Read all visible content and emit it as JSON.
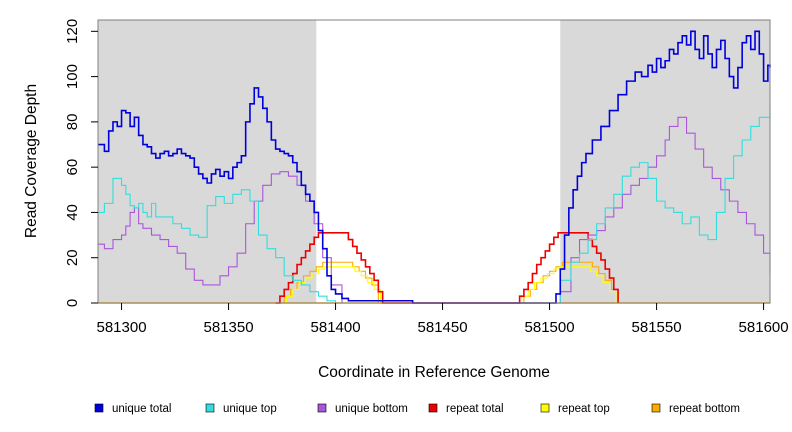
{
  "chart_data": {
    "type": "line",
    "step": true,
    "xlabel": "Coordinate in Reference Genome",
    "ylabel": "Read Coverage Depth",
    "xlim": [
      581289,
      581603
    ],
    "ylim": [
      0,
      125
    ],
    "xticks": [
      581300,
      581350,
      581400,
      581450,
      581500,
      581550,
      581600
    ],
    "yticks": [
      0,
      20,
      40,
      60,
      80,
      100,
      120
    ],
    "shaded_regions": [
      [
        581289,
        581391
      ],
      [
        581505,
        581603
      ]
    ],
    "shade_color": "#d9d9d9",
    "legend_position": "bottom",
    "series": [
      {
        "name": "unique total",
        "color": "#0000dd",
        "x": [
          581289,
          581292,
          581294,
          581296,
          581298,
          581300,
          581302,
          581304,
          581306,
          581308,
          581310,
          581312,
          581314,
          581316,
          581318,
          581320,
          581322,
          581324,
          581326,
          581328,
          581330,
          581332,
          581334,
          581336,
          581338,
          581340,
          581342,
          581344,
          581346,
          581348,
          581350,
          581352,
          581354,
          581356,
          581358,
          581360,
          581362,
          581364,
          581366,
          581368,
          581370,
          581372,
          581374,
          581376,
          581378,
          581380,
          581382,
          581384,
          581386,
          581388,
          581390,
          581392,
          581394,
          581396,
          581398,
          581400,
          581403,
          581406,
          581410,
          581420,
          581436,
          581500,
          581503,
          581505,
          581507,
          581509,
          581511,
          581513,
          581515,
          581517,
          581520,
          581524,
          581528,
          581532,
          581536,
          581540,
          581543,
          581546,
          581548,
          581550,
          581552,
          581554,
          581556,
          581558,
          581560,
          581562,
          581564,
          581566,
          581568,
          581570,
          581572,
          581574,
          581576,
          581578,
          581580,
          581582,
          581584,
          581586,
          581588,
          581590,
          581592,
          581594,
          581596,
          581598,
          581600,
          581602,
          581603
        ],
        "y": [
          70,
          67,
          76,
          80,
          78,
          85,
          84,
          78,
          82,
          74,
          70,
          69,
          66,
          64,
          66,
          67,
          65,
          66,
          68,
          66,
          65,
          64,
          60,
          57,
          55,
          53,
          57,
          59,
          56,
          58,
          55,
          60,
          62,
          65,
          80,
          88,
          95,
          91,
          86,
          80,
          72,
          68,
          67,
          66,
          65,
          62,
          58,
          52,
          48,
          45,
          40,
          32,
          24,
          12,
          6,
          4,
          2,
          1,
          1,
          1,
          0,
          0,
          4,
          15,
          30,
          42,
          50,
          56,
          62,
          66,
          72,
          78,
          85,
          92,
          98,
          102,
          100,
          105,
          102,
          108,
          104,
          107,
          112,
          110,
          115,
          118,
          114,
          120,
          112,
          108,
          118,
          110,
          104,
          112,
          116,
          108,
          100,
          95,
          104,
          115,
          118,
          112,
          120,
          110,
          98,
          105,
          104
        ]
      },
      {
        "name": "unique top",
        "color": "#33dddd",
        "x": [
          581289,
          581292,
          581296,
          581300,
          581302,
          581304,
          581306,
          581308,
          581310,
          581312,
          581314,
          581316,
          581320,
          581324,
          581328,
          581332,
          581336,
          581340,
          581344,
          581348,
          581352,
          581356,
          581360,
          581364,
          581368,
          581372,
          581376,
          581380,
          581384,
          581388,
          581392,
          581396,
          581400,
          581404,
          581500,
          581505,
          581510,
          581514,
          581518,
          581522,
          581526,
          581530,
          581534,
          581538,
          581542,
          581546,
          581550,
          581554,
          581558,
          581562,
          581566,
          581570,
          581574,
          581578,
          581582,
          581586,
          581590,
          581594,
          581598,
          581603
        ],
        "y": [
          40,
          44,
          55,
          52,
          48,
          43,
          42,
          44,
          40,
          38,
          44,
          38,
          38,
          35,
          33,
          30,
          29,
          43,
          47,
          44,
          48,
          50,
          45,
          30,
          24,
          20,
          12,
          10,
          8,
          5,
          3,
          1,
          0,
          0,
          0,
          10,
          18,
          22,
          28,
          35,
          42,
          48,
          56,
          60,
          62,
          55,
          45,
          42,
          40,
          35,
          38,
          30,
          28,
          40,
          55,
          65,
          72,
          78,
          82,
          88
        ]
      },
      {
        "name": "unique bottom",
        "color": "#aa55dd",
        "x": [
          581289,
          581292,
          581296,
          581300,
          581302,
          581304,
          581306,
          581308,
          581310,
          581314,
          581318,
          581322,
          581326,
          581330,
          581334,
          581338,
          581342,
          581346,
          581350,
          581354,
          581358,
          581362,
          581366,
          581370,
          581374,
          581378,
          581382,
          581386,
          581390,
          581394,
          581398,
          581403,
          581500,
          581505,
          581510,
          581514,
          581518,
          581522,
          581526,
          581530,
          581534,
          581538,
          581542,
          581546,
          581550,
          581554,
          581556,
          581560,
          581564,
          581568,
          581572,
          581576,
          581580,
          581584,
          581588,
          581592,
          581596,
          581600,
          581603
        ],
        "y": [
          26,
          24,
          28,
          30,
          34,
          40,
          42,
          35,
          33,
          30,
          28,
          25,
          22,
          15,
          10,
          8,
          8,
          12,
          16,
          22,
          35,
          45,
          52,
          57,
          58,
          56,
          52,
          45,
          35,
          20,
          8,
          0,
          0,
          5,
          20,
          28,
          30,
          32,
          38,
          42,
          48,
          52,
          55,
          60,
          65,
          72,
          78,
          82,
          75,
          68,
          60,
          55,
          50,
          45,
          40,
          35,
          30,
          22,
          13
        ]
      },
      {
        "name": "repeat total",
        "color": "#ee0000",
        "x": [
          581372,
          581374,
          581376,
          581378,
          581380,
          581382,
          581384,
          581386,
          581388,
          581390,
          581392,
          581404,
          581406,
          581408,
          581410,
          581412,
          581414,
          581416,
          581418,
          581420,
          581422,
          581484,
          581486,
          581488,
          581490,
          581492,
          581494,
          581496,
          581498,
          581500,
          581502,
          581504,
          581516,
          581518,
          581520,
          581522,
          581524,
          581526,
          581528,
          581530,
          581532
        ],
        "y": [
          0,
          3,
          6,
          9,
          13,
          17,
          20,
          23,
          26,
          29,
          31,
          31,
          28,
          25,
          22,
          19,
          16,
          13,
          10,
          5,
          0,
          0,
          3,
          6,
          9,
          13,
          17,
          20,
          23,
          26,
          29,
          31,
          31,
          28,
          25,
          22,
          19,
          15,
          11,
          6,
          0
        ]
      },
      {
        "name": "repeat top",
        "color": "#ffff00",
        "x": [
          581374,
          581377,
          581380,
          581383,
          581386,
          581389,
          581392,
          581395,
          581406,
          581409,
          581412,
          581415,
          581418,
          581421,
          581484,
          581487,
          581490,
          581493,
          581496,
          581499,
          581502,
          581505,
          581516,
          581519,
          581522,
          581525,
          581528,
          581531
        ],
        "y": [
          0,
          3,
          6,
          9,
          11,
          13,
          15,
          16,
          16,
          14,
          12,
          9,
          6,
          0,
          0,
          3,
          6,
          9,
          11,
          13,
          15,
          16,
          16,
          14,
          12,
          9,
          5,
          0
        ]
      },
      {
        "name": "repeat bottom",
        "color": "#ffaa00",
        "x": [
          581373,
          581376,
          581379,
          581382,
          581385,
          581388,
          581391,
          581394,
          581405,
          581408,
          581411,
          581414,
          581417,
          581420,
          581485,
          581488,
          581491,
          581494,
          581497,
          581500,
          581503,
          581506,
          581517,
          581520,
          581523,
          581526,
          581529,
          581532
        ],
        "y": [
          0,
          3,
          6,
          9,
          12,
          14,
          16,
          18,
          18,
          16,
          14,
          11,
          8,
          0,
          0,
          3,
          6,
          9,
          12,
          14,
          16,
          18,
          18,
          16,
          13,
          10,
          6,
          0
        ]
      }
    ]
  }
}
